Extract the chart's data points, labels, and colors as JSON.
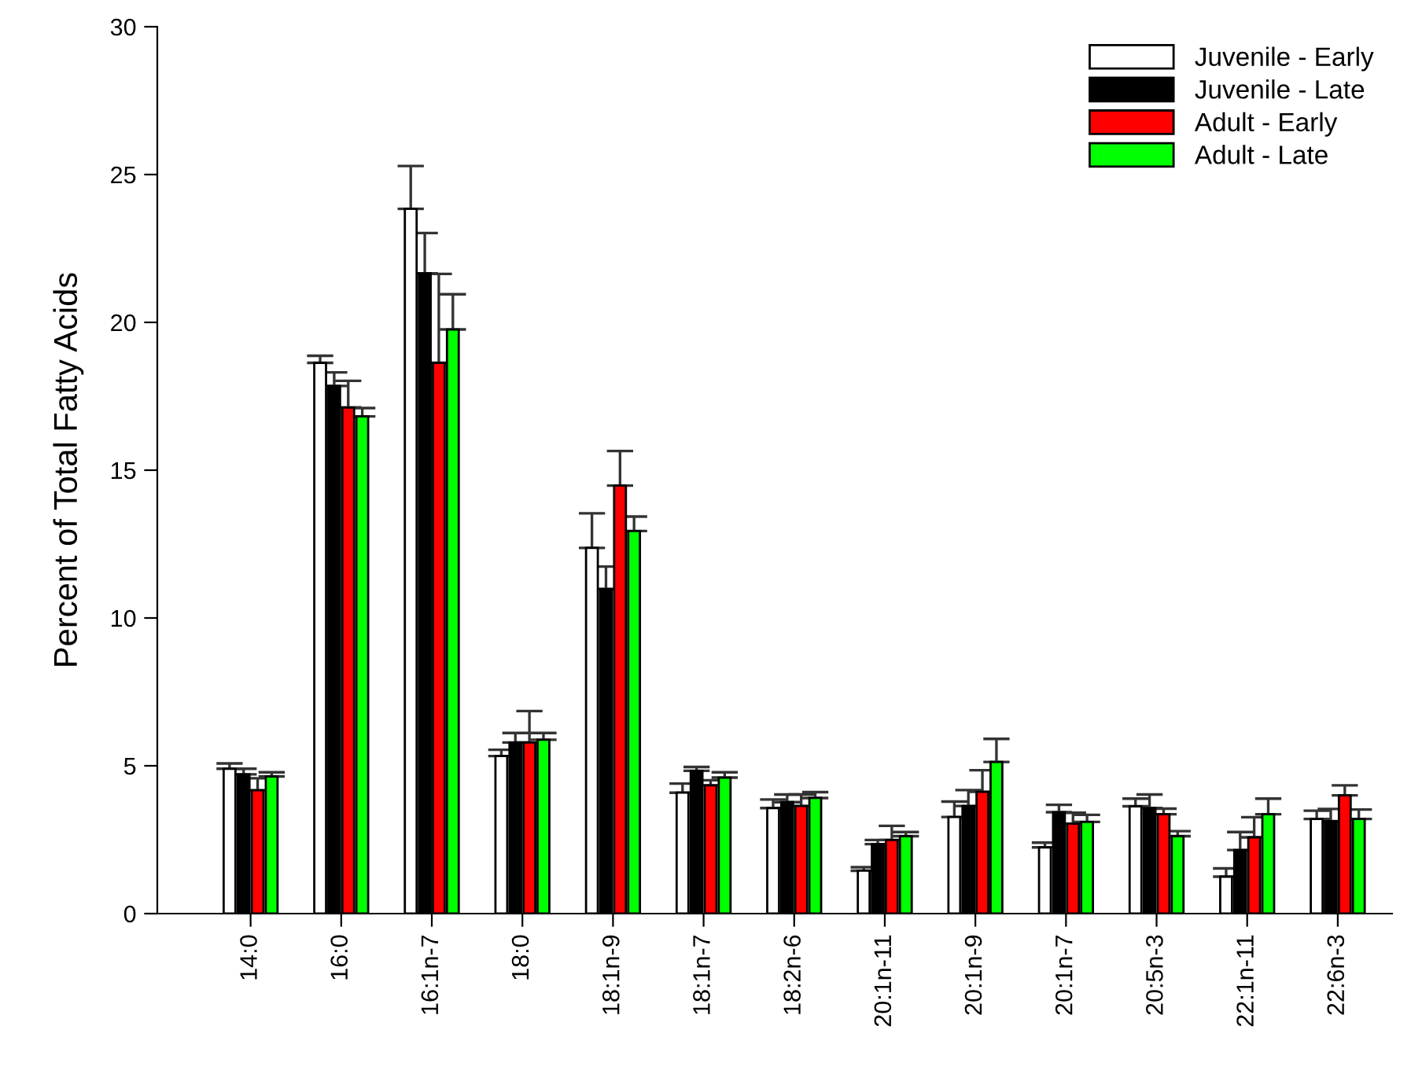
{
  "chart_data": {
    "type": "bar",
    "ylabel": "Percent of Total Fatty Acids",
    "categories": [
      "14:0",
      "16:0",
      "16:1n-7",
      "18:0",
      "18:1n-9",
      "18:1n-7",
      "18:2n-6",
      "20:1n-11",
      "20:1n-9",
      "20:1n-7",
      "20:5n-3",
      "22:1n-11",
      "22:6n-3"
    ],
    "series": [
      {
        "name": "Juvenile - Early",
        "color": "#ffffff",
        "values": [
          4.9,
          18.63,
          23.84,
          5.33,
          12.37,
          4.09,
          3.57,
          1.45,
          3.27,
          2.24,
          3.63,
          1.25,
          3.2
        ],
        "errors": [
          [
            4.9,
            5.08
          ],
          [
            18.63,
            18.87
          ],
          [
            23.84,
            25.29
          ],
          [
            5.33,
            5.54
          ],
          [
            12.37,
            13.54
          ],
          [
            4.09,
            4.4
          ],
          [
            3.57,
            3.86
          ],
          [
            1.45,
            1.57
          ],
          [
            3.27,
            3.79
          ],
          [
            2.24,
            2.4
          ],
          [
            3.63,
            3.89
          ],
          [
            1.25,
            1.53
          ],
          [
            3.2,
            3.48
          ]
        ]
      },
      {
        "name": "Juvenile - Late",
        "color": "#000000",
        "values": [
          4.71,
          17.85,
          21.66,
          5.79,
          10.98,
          4.83,
          3.77,
          2.35,
          3.64,
          3.43,
          3.57,
          2.15,
          3.13
        ],
        "errors": [
          [
            4.71,
            4.9
          ],
          [
            17.85,
            18.31
          ],
          [
            21.66,
            23.02
          ],
          [
            5.79,
            6.11
          ],
          [
            10.98,
            11.74
          ],
          [
            4.83,
            4.96
          ],
          [
            3.77,
            4.03
          ],
          [
            2.35,
            2.49
          ],
          [
            3.64,
            4.18
          ],
          [
            3.43,
            3.68
          ],
          [
            3.57,
            4.03
          ],
          [
            2.15,
            2.76
          ],
          [
            3.13,
            3.54
          ]
        ]
      },
      {
        "name": "Adult - Early",
        "color": "#ff0000",
        "values": [
          4.17,
          17.12,
          18.63,
          5.79,
          14.48,
          4.34,
          3.64,
          2.49,
          4.12,
          3.04,
          3.36,
          2.58,
          4.0
        ],
        "errors": [
          [
            4.17,
            4.58
          ],
          [
            17.12,
            18.02
          ],
          [
            18.63,
            21.64
          ],
          [
            5.79,
            6.85
          ],
          [
            14.48,
            15.65
          ],
          [
            4.34,
            4.51
          ],
          [
            3.64,
            4.03
          ],
          [
            2.49,
            2.97
          ],
          [
            4.12,
            4.85
          ],
          [
            3.04,
            3.41
          ],
          [
            3.36,
            3.55
          ],
          [
            2.58,
            3.26
          ],
          [
            4.0,
            4.34
          ]
        ]
      },
      {
        "name": "Adult - Late",
        "color": "#00ff00",
        "values": [
          4.64,
          16.82,
          19.76,
          5.88,
          12.94,
          4.6,
          3.91,
          2.62,
          5.13,
          3.1,
          2.62,
          3.36,
          3.2
        ],
        "errors": [
          [
            4.64,
            4.78
          ],
          [
            16.82,
            17.1
          ],
          [
            19.76,
            20.95
          ],
          [
            5.88,
            6.11
          ],
          [
            12.94,
            13.43
          ],
          [
            4.6,
            4.78
          ],
          [
            3.91,
            4.11
          ],
          [
            2.62,
            2.76
          ],
          [
            5.13,
            5.91
          ],
          [
            3.1,
            3.34
          ],
          [
            2.62,
            2.79
          ],
          [
            3.36,
            3.89
          ],
          [
            3.2,
            3.52
          ]
        ]
      }
    ],
    "ylim": [
      0,
      30
    ],
    "yticks": [
      0,
      5,
      10,
      15,
      20,
      25,
      30
    ],
    "grid": false,
    "legend": "top right"
  }
}
